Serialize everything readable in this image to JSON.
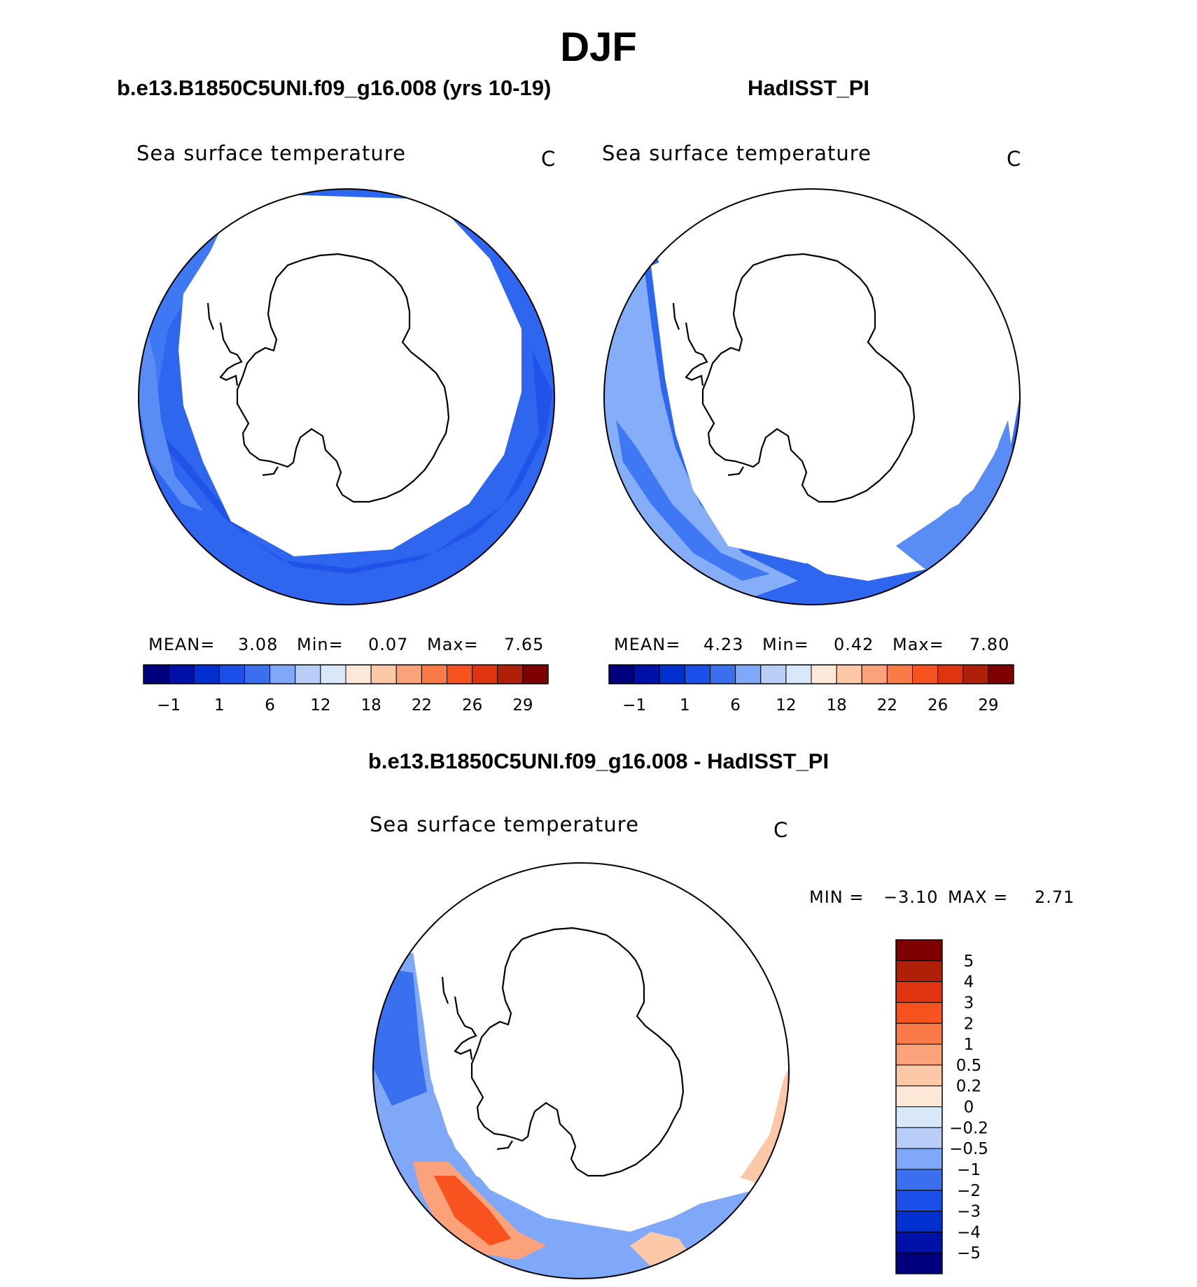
{
  "title": "DJF",
  "panels": [
    {
      "title": "b.e13.B1850C5UNI.f09_g16.008 (yrs 10-19)",
      "variable": "Sea surface temperature",
      "units": "C",
      "mean_label": "MEAN=",
      "mean": "3.08",
      "min_label": "Min=",
      "min": "0.07",
      "max_label": "Max=",
      "max": "7.65"
    },
    {
      "title": "HadISST_PI",
      "variable": "Sea surface temperature",
      "units": "C",
      "mean_label": "MEAN=",
      "mean": "4.23",
      "min_label": "Min=",
      "min": "0.42",
      "max_label": "Max=",
      "max": "7.80"
    }
  ],
  "colorbar": {
    "colors": [
      "#00007f",
      "#0010a8",
      "#0030d0",
      "#1a50e8",
      "#3a70f0",
      "#80a8f8",
      "#b8cef8",
      "#d8e8f8",
      "#fde8d8",
      "#fcc8a8",
      "#fca27a",
      "#fc7a48",
      "#f8521f",
      "#e03410",
      "#b02008",
      "#7f0000"
    ],
    "tick_labels": [
      "−1",
      "1",
      "6",
      "12",
      "18",
      "22",
      "26",
      "29"
    ]
  },
  "difference": {
    "title": "b.e13.B1850C5UNI.f09_g16.008 - HadISST_PI",
    "variable": "Sea surface temperature",
    "units": "C",
    "min_label": "MIN =",
    "min": "−3.10",
    "max_label": "MAX =",
    "max": "2.71",
    "colorbar": {
      "colors": [
        "#7f0000",
        "#b02008",
        "#e03410",
        "#f8521f",
        "#fc7a48",
        "#fca27a",
        "#fcc8a8",
        "#fde8d8",
        "#d8e8f8",
        "#b8cef8",
        "#80a8f8",
        "#3a70f0",
        "#1a50e8",
        "#0030d0",
        "#0010a8",
        "#00007f"
      ],
      "tick_labels": [
        "5",
        "4",
        "3",
        "2",
        "1",
        "0.5",
        "0.2",
        "0",
        "−0.2",
        "−0.5",
        "−1",
        "−2",
        "−3",
        "−4",
        "−5"
      ]
    }
  }
}
